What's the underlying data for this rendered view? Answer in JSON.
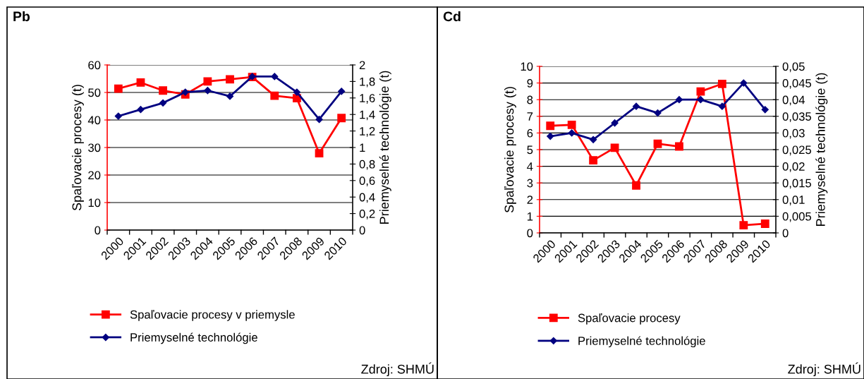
{
  "chart_data": [
    {
      "type": "line",
      "title": "Pb",
      "ylabel": "Spaľovacie procesy (t)",
      "y2label": "Priemyselné technológie (t)",
      "categories": [
        "2000",
        "2001",
        "2002",
        "2003",
        "2004",
        "2005",
        "2006",
        "2007",
        "2008",
        "2009",
        "2010"
      ],
      "series": [
        {
          "name": "Spaľovacie procesy v priemysle",
          "color": "#ff0000",
          "marker": "square",
          "values": [
            51.4,
            53.6,
            50.7,
            49.3,
            54.0,
            54.8,
            55.6,
            48.8,
            47.9,
            27.9,
            40.7
          ]
        },
        {
          "name": "Priemyselné technológie",
          "color": "#000080",
          "marker": "diamond",
          "axis": "y2",
          "values": [
            1.38,
            1.46,
            1.54,
            1.67,
            1.69,
            1.62,
            1.86,
            1.86,
            1.67,
            1.34,
            1.68
          ]
        }
      ],
      "ylim": [
        0,
        60
      ],
      "yticks": [
        0,
        10,
        20,
        30,
        40,
        50,
        60
      ],
      "y2lim": [
        0,
        2
      ],
      "y2ticks": [
        0,
        {
          "value": 0.2,
          "label": "0,2"
        },
        {
          "value": 0.4,
          "label": "0,4"
        },
        {
          "value": 0.6,
          "label": "0,6"
        },
        {
          "value": 0.8,
          "label": "0,8"
        },
        1,
        {
          "value": 1.2,
          "label": "1,2"
        },
        {
          "value": 1.4,
          "label": "1,4"
        },
        {
          "value": 1.6,
          "label": "1,6"
        },
        {
          "value": 1.8,
          "label": "1,8"
        },
        2
      ],
      "grid": "y",
      "legend": "bottom",
      "line_style": "solid",
      "annotations": [
        "Zdroj: SHMÚ"
      ]
    },
    {
      "type": "line",
      "title": "Cd",
      "ylabel": "Spaľovacie procesy (t)",
      "y2label": "Priemyselné technológie (t)",
      "categories": [
        "2000",
        "2001",
        "2002",
        "2003",
        "2004",
        "2005",
        "2006",
        "2007",
        "2008",
        "2009",
        "2010"
      ],
      "series": [
        {
          "name": "Spaľovacie procesy",
          "color": "#ff0000",
          "marker": "square",
          "values": [
            6.43,
            6.49,
            4.36,
            5.11,
            2.85,
            5.35,
            5.19,
            8.49,
            8.95,
            0.46,
            0.55
          ]
        },
        {
          "name": "Priemyselné technológie",
          "color": "#000080",
          "marker": "diamond",
          "axis": "y2",
          "values": [
            0.029,
            0.03,
            0.028,
            0.033,
            0.038,
            0.036,
            0.04,
            0.04,
            0.038,
            0.045,
            0.037
          ]
        }
      ],
      "ylim": [
        0,
        10
      ],
      "yticks": [
        0,
        1,
        2,
        3,
        4,
        5,
        6,
        7,
        8,
        9,
        10
      ],
      "y2lim": [
        0,
        0.05
      ],
      "y2ticks": [
        0,
        {
          "value": 0.005,
          "label": "0,005"
        },
        {
          "value": 0.01,
          "label": "0,01"
        },
        {
          "value": 0.015,
          "label": "0,015"
        },
        {
          "value": 0.02,
          "label": "0,02"
        },
        {
          "value": 0.025,
          "label": "0,025"
        },
        {
          "value": 0.03,
          "label": "0,03"
        },
        {
          "value": 0.035,
          "label": "0,035"
        },
        {
          "value": 0.04,
          "label": "0,04"
        },
        {
          "value": 0.045,
          "label": "0,045"
        },
        {
          "value": 0.05,
          "label": "0,05"
        }
      ],
      "grid": "y",
      "legend": "bottom",
      "line_style": "solid",
      "annotations": [
        "Zdroj: SHMÚ"
      ]
    }
  ]
}
